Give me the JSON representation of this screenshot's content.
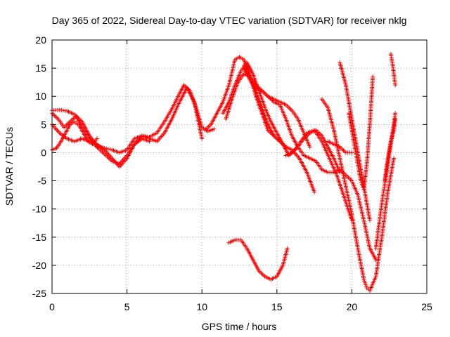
{
  "chart_data": {
    "type": "scatter",
    "title": "Day 365 of 2022, Sidereal Day-to-day VTEC variation (SDTVAR) for receiver nklg",
    "xlabel": "GPS time / hours",
    "ylabel": "SDTVAR / TECUs",
    "xlim": [
      0,
      25
    ],
    "ylim": [
      -25,
      20
    ],
    "xticks": [
      "0",
      "5",
      "10",
      "15",
      "20",
      "25"
    ],
    "yticks": [
      "-25",
      "-20",
      "-15",
      "-10",
      "-5",
      "0",
      "5",
      "10",
      "15",
      "20"
    ],
    "grid": true,
    "marker": "+",
    "color": "#ff0000",
    "series": [
      {
        "x": [
          0.0,
          0.5,
          1.0,
          1.5,
          2.0,
          2.5,
          3.0,
          3.5,
          4.0,
          4.5,
          5.0,
          5.5,
          6.0,
          6.5,
          7.0,
          7.5,
          8.0,
          8.5,
          8.8,
          9.2,
          9.6,
          10.0,
          10.4,
          10.8
        ],
        "y": [
          7.5,
          7.6,
          7.4,
          6.8,
          5.5,
          3.0,
          1.2,
          0.8,
          0.5,
          0.0,
          0.5,
          2.5,
          3.0,
          2.8,
          3.5,
          5.5,
          7.8,
          10.5,
          12.0,
          11.0,
          8.0,
          4.5,
          3.8,
          4.2
        ]
      },
      {
        "x": [
          0.0,
          0.5,
          1.0,
          1.5,
          2.0,
          2.5,
          3.0,
          3.5,
          4.0,
          4.5,
          5.0,
          5.5,
          6.0,
          6.5,
          7.0,
          7.5,
          8.0,
          8.5,
          9.0,
          9.5,
          10.0
        ],
        "y": [
          5.0,
          3.5,
          2.5,
          2.0,
          2.5,
          2.0,
          1.5,
          0.5,
          -1.0,
          -2.5,
          -1.0,
          1.5,
          3.0,
          2.5,
          2.0,
          3.5,
          6.0,
          9.0,
          11.5,
          9.0,
          2.5
        ]
      },
      {
        "x": [
          0.0,
          0.4,
          0.8,
          1.2,
          1.6,
          2.0,
          2.4,
          2.8,
          3.2,
          3.6,
          4.0,
          4.5,
          5.0,
          5.5,
          6.0,
          6.5
        ],
        "y": [
          7.0,
          6.0,
          4.5,
          5.5,
          6.5,
          4.5,
          3.0,
          1.5,
          0.5,
          -0.5,
          -1.5,
          -2.0,
          -0.5,
          1.5,
          2.5,
          2.0
        ]
      },
      {
        "x": [
          0.0,
          0.3,
          0.6,
          0.9,
          1.2,
          1.5,
          1.8,
          2.1,
          2.4,
          2.7,
          3.0
        ],
        "y": [
          0.5,
          0.8,
          2.0,
          3.5,
          5.0,
          5.5,
          4.8,
          3.5,
          2.0,
          1.5,
          2.5
        ]
      },
      {
        "x": [
          10.2,
          10.6,
          11.0,
          11.4,
          11.8,
          12.2,
          12.5,
          12.8,
          13.2,
          13.6,
          14.0,
          14.4,
          14.8,
          15.2,
          15.6,
          16.0,
          16.5,
          17.0,
          17.5
        ],
        "y": [
          4.0,
          5.0,
          7.0,
          9.0,
          12.0,
          16.5,
          17.0,
          16.5,
          14.0,
          10.0,
          7.0,
          4.0,
          3.0,
          2.0,
          1.0,
          0.5,
          -1.0,
          -3.5,
          -7.0
        ]
      },
      {
        "x": [
          11.4,
          11.8,
          12.2,
          12.6,
          13.0,
          13.4,
          13.8,
          14.2,
          14.6,
          15.0,
          15.4,
          15.8,
          16.2,
          16.6,
          17.0,
          17.5,
          18.0,
          18.5,
          19.0,
          19.5,
          20.0
        ],
        "y": [
          7.0,
          9.0,
          12.0,
          14.5,
          16.0,
          14.0,
          11.0,
          8.0,
          5.5,
          3.5,
          1.5,
          -0.5,
          0.5,
          2.0,
          3.5,
          4.0,
          2.0,
          -1.0,
          -4.0,
          -8.0,
          -12.0
        ]
      },
      {
        "x": [
          11.6,
          12.0,
          12.4,
          12.8,
          13.2,
          13.6,
          14.0,
          14.4,
          14.8,
          15.2,
          15.6,
          16.0,
          16.4,
          16.8,
          17.2
        ],
        "y": [
          6.0,
          9.5,
          12.5,
          14.0,
          13.5,
          12.0,
          11.0,
          10.0,
          9.5,
          9.0,
          8.5,
          7.5,
          6.0,
          3.5,
          1.0
        ]
      },
      {
        "x": [
          12.8,
          13.2,
          13.6,
          14.0,
          14.4,
          14.8,
          15.2,
          15.6,
          16.0,
          16.4,
          16.8,
          17.2,
          17.6,
          18.0,
          18.4,
          18.8,
          19.2,
          19.6,
          20.0,
          20.4,
          20.8,
          21.2,
          21.6
        ],
        "y": [
          15.5,
          13.0,
          11.5,
          11.0,
          10.0,
          9.0,
          8.5,
          6.0,
          3.0,
          1.0,
          -0.5,
          -1.0,
          -1.5,
          -3.0,
          -3.5,
          -3.5,
          -3.0,
          -4.0,
          -5.0,
          -7.5,
          -12.0,
          -17.0,
          -19.0
        ]
      },
      {
        "x": [
          12.8,
          13.2,
          13.6,
          14.0,
          14.4,
          14.8,
          15.2,
          15.6
        ],
        "y": [
          15.0,
          13.0,
          11.0,
          8.0,
          5.0,
          3.0,
          2.0,
          1.0
        ]
      },
      {
        "x": [
          11.8,
          12.2,
          12.6,
          13.0,
          13.4,
          13.8,
          14.2,
          14.6,
          15.0,
          15.4,
          15.7
        ],
        "y": [
          -16.0,
          -15.5,
          -15.5,
          -17.0,
          -19.0,
          -21.0,
          -22.0,
          -22.5,
          -22.0,
          -20.0,
          -17.0
        ]
      },
      {
        "x": [
          18.0,
          18.4,
          18.8,
          19.2,
          19.6,
          20.0,
          20.4,
          20.8,
          21.0,
          21.2,
          21.6,
          22.0,
          22.4,
          22.8
        ],
        "y": [
          9.5,
          8.0,
          4.0,
          -1.0,
          -6.0,
          -11.0,
          -17.0,
          -22.5,
          -24.0,
          -24.5,
          -22.0,
          -15.0,
          -7.0,
          -1.0
        ]
      },
      {
        "x": [
          15.6,
          16.0,
          16.4,
          16.8,
          17.2,
          17.6,
          18.0,
          18.4,
          18.8,
          19.2
        ],
        "y": [
          -0.5,
          0.0,
          1.0,
          2.5,
          3.5,
          4.0,
          3.0,
          1.0,
          -1.0,
          -3.5
        ]
      },
      {
        "x": [
          19.2,
          19.6,
          20.0,
          20.4,
          20.8,
          21.2
        ],
        "y": [
          16.0,
          12.0,
          6.0,
          0.0,
          -6.0,
          -12.0
        ]
      },
      {
        "x": [
          19.8,
          20.0,
          20.2,
          20.4,
          20.6,
          20.8,
          21.0,
          21.2,
          21.4
        ],
        "y": [
          7.0,
          4.0,
          1.0,
          -2.0,
          -5.0,
          -6.5,
          -2.0,
          5.0,
          13.5
        ]
      },
      {
        "x": [
          18.4,
          18.8,
          19.2,
          19.6,
          20.0
        ],
        "y": [
          2.0,
          1.5,
          1.0,
          0.0,
          0.0
        ]
      },
      {
        "x": [
          21.6,
          22.0,
          22.4,
          22.8,
          22.9
        ],
        "y": [
          -17.0,
          -9.0,
          -2.0,
          5.0,
          7.0
        ]
      },
      {
        "x": [
          22.2,
          22.4,
          22.6,
          22.8,
          22.9
        ],
        "y": [
          -5.0,
          -1.0,
          2.0,
          4.0,
          6.0
        ]
      },
      {
        "x": [
          22.6,
          22.7,
          22.8,
          22.9
        ],
        "y": [
          17.5,
          16.0,
          14.0,
          12.0
        ]
      }
    ]
  }
}
